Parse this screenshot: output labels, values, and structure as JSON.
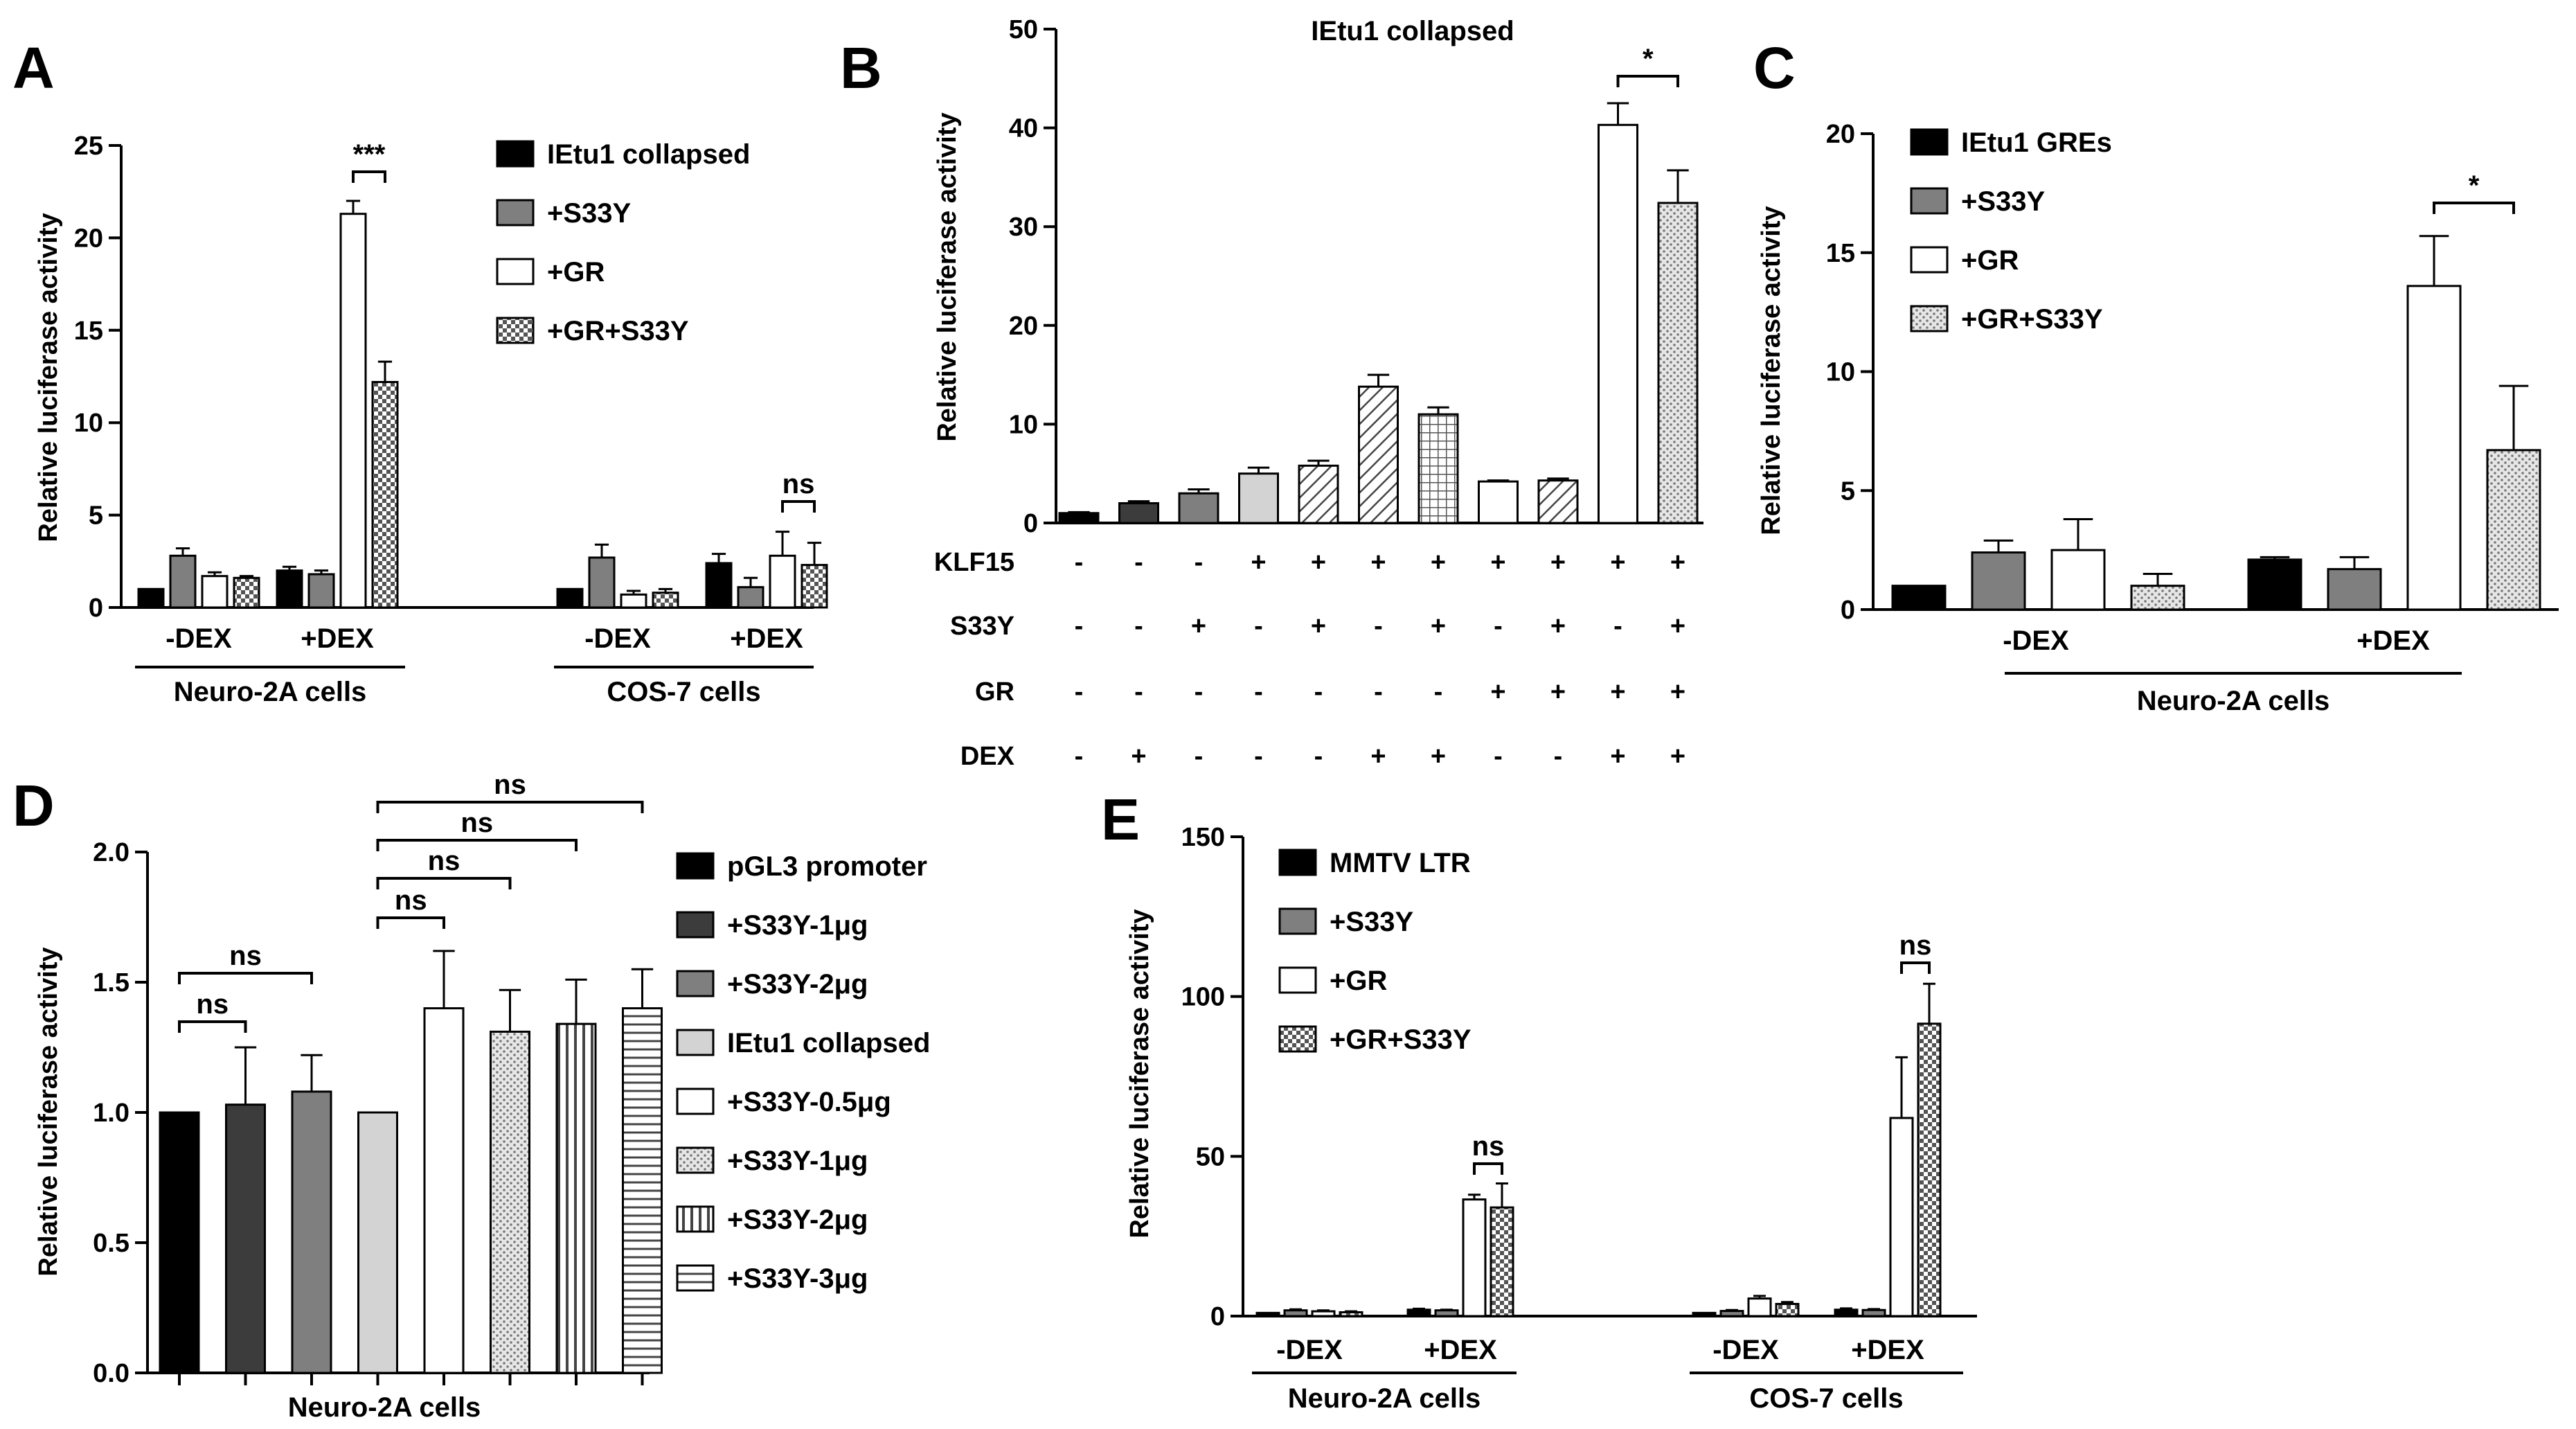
{
  "figure": {
    "panels": [
      "A",
      "B",
      "C",
      "D",
      "E"
    ]
  },
  "colors": {
    "black": "#000000",
    "dark_gray": "#3c3c3c",
    "gray": "#7f7f7f",
    "light_gray": "#d3d3d3",
    "white": "#ffffff"
  },
  "chart_data": [
    {
      "panel": "A",
      "type": "bar",
      "ylabel": "Relative luciferase activity",
      "ylim": [
        0,
        25
      ],
      "yticks": [
        "0",
        "5",
        "10",
        "15",
        "20",
        "25"
      ],
      "legend": [
        "IEtu1 collapsed",
        "+S33Y",
        "+GR",
        "+GR+S33Y"
      ],
      "groups": [
        "-DEX",
        "+DEX",
        "-DEX",
        "+DEX"
      ],
      "group_labels": [
        "Neuro-2A cells",
        "COS-7 cells"
      ],
      "series": [
        {
          "name": "IEtu1 collapsed",
          "values": [
            1.0,
            2.0,
            1.0,
            2.4
          ],
          "errors": [
            0,
            0.2,
            0,
            0.5
          ]
        },
        {
          "name": "+S33Y",
          "values": [
            2.8,
            1.8,
            2.7,
            1.1
          ],
          "errors": [
            0.4,
            0.2,
            0.7,
            0.5
          ]
        },
        {
          "name": "+GR",
          "values": [
            1.7,
            21.3,
            0.7,
            2.8
          ],
          "errors": [
            0.2,
            0.7,
            0.2,
            1.3
          ]
        },
        {
          "name": "+GR+S33Y",
          "values": [
            1.6,
            12.2,
            0.8,
            2.3
          ],
          "errors": [
            0.1,
            1.1,
            0.2,
            1.2
          ]
        }
      ],
      "annotations": [
        "***",
        "ns"
      ]
    },
    {
      "panel": "B",
      "type": "bar",
      "title": "IEtu1 collapsed",
      "ylabel": "Relative luciferase activity",
      "ylim": [
        0,
        50
      ],
      "yticks": [
        "0",
        "10",
        "20",
        "30",
        "40",
        "50"
      ],
      "values": [
        1.0,
        2.0,
        3.0,
        5.0,
        5.8,
        13.8,
        11.0,
        4.2,
        4.3,
        40.3,
        32.4
      ],
      "errors": [
        0.1,
        0.2,
        0.4,
        0.6,
        0.5,
        1.2,
        0.7,
        0.1,
        0.2,
        2.2,
        3.3
      ],
      "conditions": [
        {
          "name": "KLF15",
          "marks": [
            "-",
            "-",
            "-",
            "+",
            "+",
            "+",
            "+",
            "+",
            "+",
            "+",
            "+"
          ]
        },
        {
          "name": "S33Y",
          "marks": [
            "-",
            "-",
            "+",
            "-",
            "+",
            "-",
            "+",
            "-",
            "+",
            "-",
            "+"
          ]
        },
        {
          "name": "GR",
          "marks": [
            "-",
            "-",
            "-",
            "-",
            "-",
            "-",
            "-",
            "+",
            "+",
            "+",
            "+"
          ]
        },
        {
          "name": "DEX",
          "marks": [
            "-",
            "+",
            "-",
            "-",
            "-",
            "+",
            "+",
            "-",
            "-",
            "+",
            "+"
          ]
        }
      ],
      "annotations": [
        "*"
      ]
    },
    {
      "panel": "C",
      "type": "bar",
      "ylabel": "Relative luciferase activity",
      "ylim": [
        0,
        20
      ],
      "yticks": [
        "0",
        "5",
        "10",
        "15",
        "20"
      ],
      "legend": [
        "IEtu1 GREs",
        "+S33Y",
        "+GR",
        "+GR+S33Y"
      ],
      "groups": [
        "-DEX",
        "+DEX"
      ],
      "group_labels": [
        "Neuro-2A cells"
      ],
      "series": [
        {
          "name": "IEtu1 GREs",
          "values": [
            1.0,
            2.1
          ],
          "errors": [
            0,
            0.1
          ]
        },
        {
          "name": "+S33Y",
          "values": [
            2.4,
            1.7
          ],
          "errors": [
            0.5,
            0.5
          ]
        },
        {
          "name": "+GR",
          "values": [
            2.5,
            13.6
          ],
          "errors": [
            1.3,
            2.1
          ]
        },
        {
          "name": "+GR+S33Y",
          "values": [
            1.0,
            6.7
          ],
          "errors": [
            0.5,
            2.7
          ]
        }
      ],
      "annotations": [
        "*"
      ]
    },
    {
      "panel": "D",
      "type": "bar",
      "ylabel": "Relative luciferase activity",
      "ylim": [
        0,
        2.0
      ],
      "yticks": [
        "0.0",
        "0.5",
        "1.0",
        "1.5",
        "2.0"
      ],
      "xlabel": "Neuro-2A cells",
      "legend": [
        "pGL3 promoter",
        "+S33Y-1μg",
        "+S33Y-2μg",
        "IEtu1 collapsed",
        "+S33Y-0.5μg",
        "+S33Y-1μg",
        "+S33Y-2μg",
        "+S33Y-3μg"
      ],
      "values": [
        1.0,
        1.03,
        1.08,
        1.0,
        1.4,
        1.31,
        1.34,
        1.4
      ],
      "errors": [
        0,
        0.22,
        0.14,
        0,
        0.22,
        0.16,
        0.17,
        0.15
      ],
      "annotations": [
        "ns",
        "ns",
        "ns",
        "ns",
        "ns",
        "ns"
      ]
    },
    {
      "panel": "E",
      "type": "bar",
      "ylabel": "Relative luciferase activity",
      "ylim": [
        0,
        150
      ],
      "yticks": [
        "0",
        "50",
        "100",
        "150"
      ],
      "legend": [
        "MMTV LTR",
        "+S33Y",
        "+GR",
        "+GR+S33Y"
      ],
      "groups": [
        "-DEX",
        "+DEX",
        "-DEX",
        "+DEX"
      ],
      "group_labels": [
        "Neuro-2A cells",
        "COS-7 cells"
      ],
      "series": [
        {
          "name": "MMTV LTR",
          "values": [
            1.0,
            2.0,
            1.0,
            2.0
          ],
          "errors": [
            0,
            0.3,
            0,
            0.4
          ]
        },
        {
          "name": "+S33Y",
          "values": [
            1.8,
            1.8,
            1.6,
            1.9
          ],
          "errors": [
            0.3,
            0.2,
            0.3,
            0.3
          ]
        },
        {
          "name": "+GR",
          "values": [
            1.5,
            36.5,
            5.5,
            62.0
          ],
          "errors": [
            0.3,
            1.5,
            0.8,
            19.0
          ]
        },
        {
          "name": "+GR+S33Y",
          "values": [
            1.2,
            34.0,
            3.8,
            91.5
          ],
          "errors": [
            0.3,
            7.5,
            0.6,
            12.5
          ]
        }
      ],
      "annotations": [
        "ns",
        "ns"
      ]
    }
  ]
}
